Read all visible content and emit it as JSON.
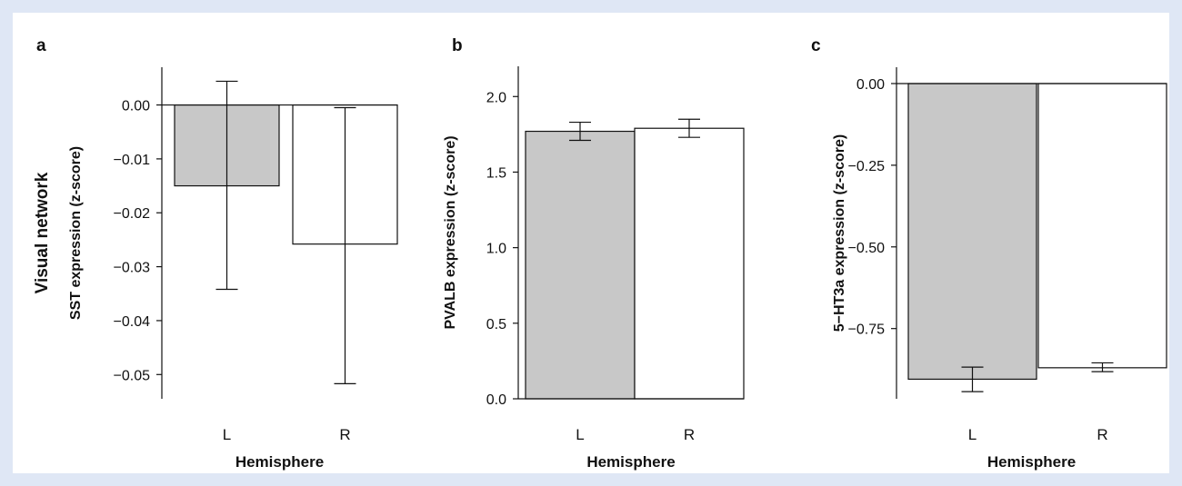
{
  "chart_data": [
    {
      "type": "bar",
      "panel_label": "a",
      "categories": [
        "L",
        "R"
      ],
      "values": [
        -0.015,
        -0.0258
      ],
      "error_low": [
        -0.0342,
        -0.0517
      ],
      "error_high": [
        0.0044,
        -0.0005
      ],
      "bar_colors": [
        "#c8c8c8",
        "#ffffff"
      ],
      "xlabel": "Hemisphere",
      "ylabel": "SST expression (z-score)",
      "ylabel_prefix": "Visual network",
      "ylim": [
        -0.0545,
        0.007
      ],
      "yticks": [
        0.0,
        -0.01,
        -0.02,
        -0.03,
        -0.04,
        -0.05
      ],
      "ytick_labels": [
        "0.00",
        "−0.01",
        "−0.02",
        "−0.03",
        "−0.04",
        "−0.05"
      ],
      "grid": false
    },
    {
      "type": "bar",
      "panel_label": "b",
      "categories": [
        "L",
        "R"
      ],
      "values": [
        1.77,
        1.79
      ],
      "error_low": [
        1.71,
        1.73
      ],
      "error_high": [
        1.83,
        1.85
      ],
      "bar_colors": [
        "#c8c8c8",
        "#ffffff"
      ],
      "xlabel": "Hemisphere",
      "ylabel": "PVALB expression (z-score)",
      "ylim": [
        0,
        2.2
      ],
      "yticks": [
        0.0,
        0.5,
        1.0,
        1.5,
        2.0
      ],
      "ytick_labels": [
        "0.0",
        "0.5",
        "1.0",
        "1.5",
        "2.0"
      ],
      "grid": false
    },
    {
      "type": "bar",
      "panel_label": "c",
      "categories": [
        "L",
        "R"
      ],
      "values": [
        -0.905,
        -0.87
      ],
      "error_low": [
        -0.943,
        -0.882
      ],
      "error_high": [
        -0.868,
        -0.855
      ],
      "bar_colors": [
        "#c8c8c8",
        "#ffffff"
      ],
      "xlabel": "Hemisphere",
      "ylabel": "5−HT3a expression (z-score)",
      "ylim": [
        -0.965,
        0.05
      ],
      "yticks": [
        0.0,
        -0.25,
        -0.5,
        -0.75
      ],
      "ytick_labels": [
        "0.00",
        "−0.25",
        "−0.50",
        "−0.75"
      ],
      "grid": false
    }
  ]
}
